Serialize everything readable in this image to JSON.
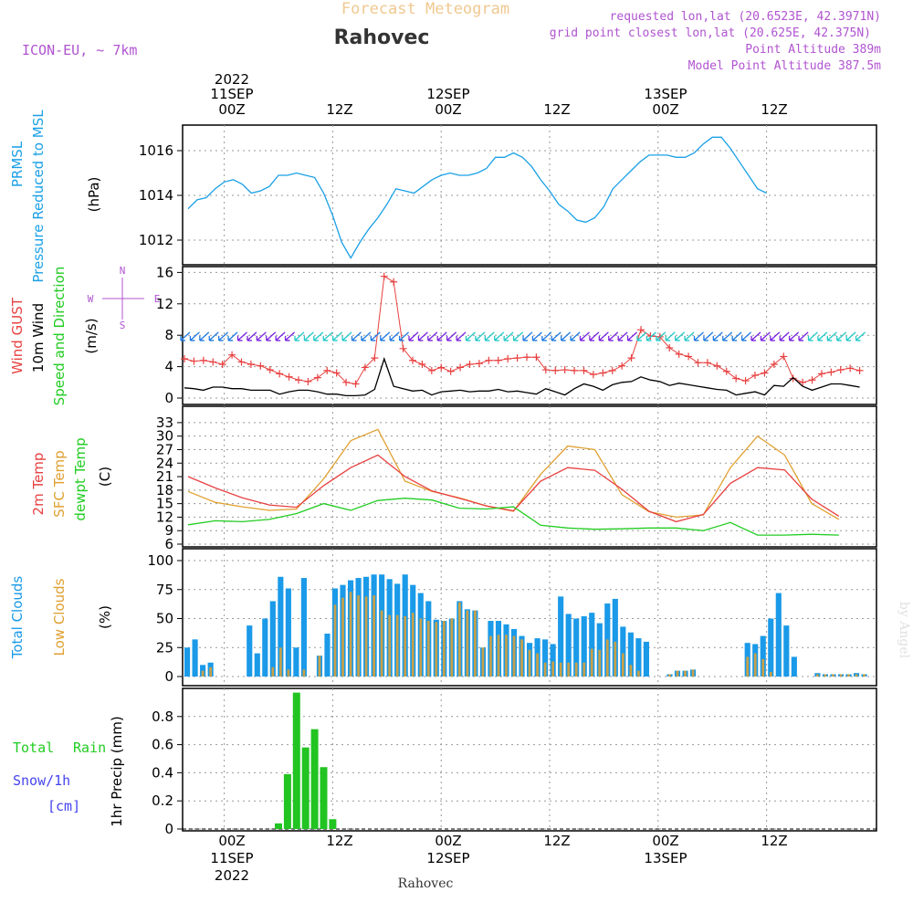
{
  "header": {
    "title_faded": "Forecast Meteogram",
    "location": "Rahovec",
    "model": "ICON-EU, ~ 7km",
    "requested": "requested lon,lat (20.6523E, 42.3971N)",
    "gridpoint": "grid point closest lon,lat (20.625E, 42.375N)",
    "point_alt": "Point Altitude 389m",
    "model_alt": "Model Point Altitude 387.5m"
  },
  "time_axis": {
    "top_labels": [
      "2022",
      "11SEP",
      "00Z",
      "12Z",
      "12SEP",
      "00Z",
      "12Z",
      "13SEP",
      "00Z",
      "12Z"
    ],
    "bottom_labels": [
      "00Z",
      "11SEP",
      "2022",
      "12Z",
      "00Z",
      "12SEP",
      "12Z",
      "00Z",
      "13SEP",
      "12Z"
    ],
    "footer": "Rahovec"
  },
  "panel_labels": {
    "pressure": [
      "PRMSL",
      "Pressure Reduced to MSL",
      "(hPa)"
    ],
    "wind": [
      "Wind GUST",
      "10m Wind",
      "Speed and Direction",
      "(m/s)"
    ],
    "compass": [
      "N",
      "W",
      "E",
      "S"
    ],
    "temp": [
      "2m Temp",
      "SFC Temp",
      "dewpt Temp",
      "(C)"
    ],
    "clouds": [
      "Total Clouds",
      "Low Clouds",
      "(%)"
    ],
    "precip": [
      "Total",
      "Rain",
      "Snow/1h",
      "[cm]",
      "1hr Precip (mm)"
    ],
    "watermark": "by Angel"
  },
  "colors": {
    "pressure": "#1aa0e6",
    "gust": "#e84040",
    "wind": "#000000",
    "temp2m": "#e84040",
    "sfc": "#e0a030",
    "dew": "#22cc22",
    "total_clouds": "#1a9ae8",
    "low_clouds": "#c8a048",
    "rain": "#22c422",
    "snow": "#4444ee",
    "header_purple": "#b054d0",
    "title_faded": "#f0c890"
  },
  "chart_data": [
    {
      "type": "line",
      "name": "pressure",
      "x_hours_from": "2022-09-10 20Z",
      "x": [
        0,
        1,
        2,
        3,
        4,
        5,
        6,
        7,
        8,
        9,
        10,
        11,
        12,
        13,
        14,
        15,
        16,
        17,
        18,
        19,
        20,
        21,
        22,
        23,
        24,
        25,
        26,
        27,
        28,
        29,
        30,
        31,
        32,
        33,
        34,
        35,
        36,
        37,
        38,
        39,
        40,
        41,
        42,
        43,
        44,
        45,
        46,
        47,
        48,
        49,
        50,
        51,
        52,
        53,
        54,
        55,
        56,
        57,
        58,
        59,
        60,
        61,
        62,
        63,
        64
      ],
      "values": [
        1013.4,
        1013.8,
        1013.9,
        1014.3,
        1014.6,
        1014.7,
        1014.5,
        1014.1,
        1014.2,
        1014.4,
        1014.9,
        1014.9,
        1015,
        1014.9,
        1014.8,
        1014.1,
        1013.1,
        1011.9,
        1011.2,
        1011.9,
        1012.5,
        1013,
        1013.6,
        1014.3,
        1014.2,
        1014.1,
        1014.4,
        1014.7,
        1014.9,
        1015,
        1014.9,
        1014.9,
        1015,
        1015.2,
        1015.7,
        1015.7,
        1015.9,
        1015.7,
        1015.3,
        1014.7,
        1014.2,
        1013.6,
        1013.3,
        1012.9,
        1012.8,
        1013,
        1013.5,
        1014.3,
        1014.7,
        1015.1,
        1015.5,
        1015.8,
        1015.8,
        1015.8,
        1015.7,
        1015.7,
        1015.9,
        1016.3,
        1016.6,
        1016.6,
        1016.1,
        1015.5,
        1014.9,
        1014.3,
        1014.1
      ]
    },
    {
      "type": "line",
      "name": "wind",
      "ylim": [
        0,
        16.5
      ],
      "gust": [
        5,
        4.7,
        4.8,
        4.6,
        4.3,
        5.5,
        4.6,
        4.3,
        4.1,
        3.6,
        3.1,
        2.7,
        2.3,
        2.1,
        2.6,
        3.5,
        3.2,
        2,
        1.8,
        3.9,
        5.1,
        15.5,
        14.8,
        6.3,
        4.8,
        4.3,
        3.5,
        3.9,
        3.4,
        3.9,
        4.3,
        4.4,
        4.8,
        4.8,
        5,
        5.1,
        5.2,
        5.2,
        3.6,
        3.5,
        3.6,
        3.5,
        3.5,
        3,
        3.2,
        3.5,
        4.1,
        5.1,
        8.7,
        7.9,
        7.8,
        6.4,
        5.6,
        5.3,
        4.5,
        4.5,
        4.1,
        3.4,
        2.5,
        2.2,
        2.9,
        3.2,
        4.3,
        5.3,
        2.5,
        2,
        2.3,
        3.1,
        3.3,
        3.6,
        3.8,
        3.5
      ],
      "values": [
        1.3,
        1.2,
        1,
        1.4,
        1.4,
        1.2,
        1.2,
        1,
        1,
        1,
        0.5,
        0.8,
        1,
        1,
        0.8,
        0.5,
        0.5,
        0.3,
        0.3,
        0.4,
        1.1,
        5,
        1.5,
        1.2,
        0.9,
        1,
        0.4,
        0.8,
        0.9,
        1,
        0.8,
        0.9,
        0.9,
        1.1,
        0.8,
        0.9,
        0.7,
        0.5,
        1.2,
        0.8,
        0.4,
        1.2,
        1.8,
        1.5,
        1,
        1.7,
        2,
        2.1,
        2.7,
        2.3,
        2.1,
        1.6,
        1.9,
        1.7,
        1.5,
        1.3,
        1.1,
        1,
        0.4,
        0.6,
        0.8,
        0.4,
        1.6,
        1.5,
        2.6,
        1.5,
        1,
        1.4,
        1.8,
        1.8,
        1.6,
        1.4
      ],
      "arrow_colors": [
        "#1f7ae0",
        "#7a22e0",
        "#22c8c8"
      ]
    },
    {
      "type": "line",
      "name": "temperature",
      "ylim": [
        6,
        33
      ],
      "x": [
        0,
        3,
        6,
        9,
        12,
        15,
        18,
        21,
        24,
        27,
        30,
        33,
        36,
        39,
        42,
        45,
        48,
        51,
        54,
        57,
        60,
        63,
        66,
        69,
        72
      ],
      "temp2m": [
        21,
        18.5,
        16.3,
        14.7,
        14.2,
        19,
        23,
        25.8,
        21,
        17.8,
        16.2,
        14.5,
        13.4,
        20,
        23,
        22.4,
        18.2,
        13.3,
        11,
        12.6,
        19.5,
        23,
        22.5,
        16,
        12.2
      ],
      "sfc": [
        17.7,
        15.3,
        14.3,
        13.5,
        13.8,
        20.5,
        29,
        31.5,
        20,
        17.7,
        16.3,
        14.5,
        13.3,
        21.5,
        27.8,
        27,
        17,
        13.2,
        12,
        12.5,
        23,
        30,
        25.8,
        15,
        11.5
      ],
      "dew": [
        10.3,
        11.2,
        11,
        11.5,
        12.8,
        15,
        13.5,
        15.7,
        16.2,
        15.8,
        14,
        13.8,
        14.3,
        10.2,
        9.6,
        9.3,
        9.4,
        9.6,
        9.6,
        9,
        10.8,
        8,
        8,
        8.2,
        8
      ]
    },
    {
      "type": "bar",
      "name": "clouds",
      "ylim": [
        0,
        100
      ],
      "total": [
        25,
        32,
        10,
        12,
        0,
        0,
        0,
        0,
        44,
        20,
        50,
        65,
        86,
        76,
        25,
        85,
        0,
        18,
        37,
        76,
        79,
        83,
        85,
        86,
        88,
        88,
        84,
        80,
        88,
        79,
        72,
        65,
        49,
        48,
        50,
        65,
        58,
        57,
        25,
        48,
        48,
        45,
        41,
        35,
        29,
        33,
        32,
        28,
        69,
        54,
        50,
        52,
        55,
        46,
        63,
        67,
        43,
        38,
        33,
        30,
        0,
        0,
        2,
        5,
        5,
        6,
        0,
        0,
        0,
        0,
        0,
        0,
        29,
        28,
        35,
        50,
        72,
        44,
        17,
        0,
        0,
        3,
        2,
        2,
        2,
        2,
        3,
        2
      ],
      "low": [
        0,
        0,
        5,
        8,
        0,
        0,
        0,
        0,
        0,
        0,
        0,
        8,
        25,
        6,
        0,
        6,
        0,
        18,
        0,
        62,
        68,
        73,
        70,
        69,
        70,
        57,
        53,
        53,
        52,
        55,
        50,
        48,
        47,
        48,
        50,
        64,
        57,
        57,
        25,
        35,
        36,
        36,
        35,
        32,
        23,
        20,
        12,
        13,
        12,
        12,
        12,
        12,
        24,
        23,
        32,
        30,
        20,
        10,
        5,
        0,
        0,
        0,
        2,
        5,
        5,
        6,
        0,
        0,
        0,
        0,
        0,
        0,
        17,
        20,
        15,
        4,
        0,
        0,
        0,
        0,
        0,
        2,
        2,
        2,
        2,
        2,
        2,
        2
      ]
    },
    {
      "type": "bar",
      "name": "precip",
      "ylim": [
        0,
        1
      ],
      "values": [
        0.04,
        0.39,
        0.97,
        0.58,
        0.71,
        0.44,
        0.07
      ],
      "x_hours": [
        10,
        11,
        12,
        13,
        14,
        15,
        16
      ]
    }
  ]
}
